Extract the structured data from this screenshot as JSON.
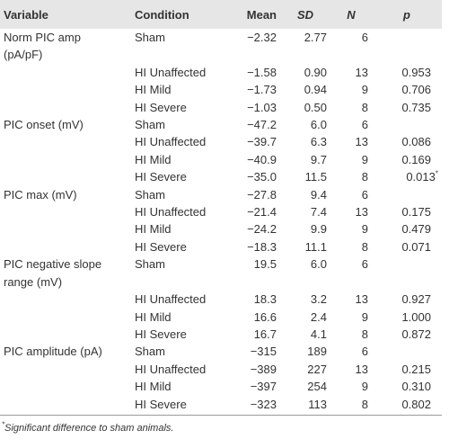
{
  "table": {
    "header": [
      "Variable",
      "Condition",
      "Mean",
      "SD",
      "N",
      "p"
    ],
    "rows": [
      {
        "variable": [
          "Norm PIC amp",
          "(pA/pF)"
        ],
        "condition": "Sham",
        "mean": "−2.32",
        "sd": "2.77",
        "n": "6",
        "p": null
      },
      {
        "variable": null,
        "condition": "HI Unaffected",
        "mean": "−1.58",
        "sd": "0.90",
        "n": "13",
        "p": "0.953"
      },
      {
        "variable": null,
        "condition": "HI Mild",
        "mean": "−1.73",
        "sd": "0.94",
        "n": "9",
        "p": "0.706"
      },
      {
        "variable": null,
        "condition": "HI Severe",
        "mean": "−1.03",
        "sd": "0.50",
        "n": "8",
        "p": "0.735"
      },
      {
        "variable": [
          "PIC onset (mV)"
        ],
        "condition": "Sham",
        "mean": "−47.2",
        "sd": "6.0",
        "n": "6",
        "p": null
      },
      {
        "variable": null,
        "condition": "HI Unaffected",
        "mean": "−39.7",
        "sd": "6.3",
        "n": "13",
        "p": "0.086"
      },
      {
        "variable": null,
        "condition": "HI Mild",
        "mean": "−40.9",
        "sd": "9.7",
        "n": "9",
        "p": "0.169"
      },
      {
        "variable": null,
        "condition": "HI Severe",
        "mean": "−35.0",
        "sd": "11.5",
        "n": "8",
        "p": "0.013",
        "p_mark": "*"
      },
      {
        "variable": [
          "PIC max (mV)"
        ],
        "condition": "Sham",
        "mean": "−27.8",
        "sd": "9.4",
        "n": "6",
        "p": null
      },
      {
        "variable": null,
        "condition": "HI Unaffected",
        "mean": "−21.4",
        "sd": "7.4",
        "n": "13",
        "p": "0.175"
      },
      {
        "variable": null,
        "condition": "HI Mild",
        "mean": "−24.2",
        "sd": "9.9",
        "n": "9",
        "p": "0.479"
      },
      {
        "variable": null,
        "condition": "HI Severe",
        "mean": "−18.3",
        "sd": "11.1",
        "n": "8",
        "p": "0.071"
      },
      {
        "variable": [
          "PIC negative slope",
          "range (mV)"
        ],
        "condition": "Sham",
        "mean": "19.5",
        "sd": "6.0",
        "n": "6",
        "p": null
      },
      {
        "variable": null,
        "condition": "HI Unaffected",
        "mean": "18.3",
        "sd": "3.2",
        "n": "13",
        "p": "0.927"
      },
      {
        "variable": null,
        "condition": "HI Mild",
        "mean": "16.6",
        "sd": "2.4",
        "n": "9",
        "p": "1.000"
      },
      {
        "variable": null,
        "condition": "HI Severe",
        "mean": "16.7",
        "sd": "4.1",
        "n": "8",
        "p": "0.872"
      },
      {
        "variable": [
          "PIC amplitude (pA)"
        ],
        "condition": "Sham",
        "mean": "−315",
        "sd": "189",
        "n": "6",
        "p": null
      },
      {
        "variable": null,
        "condition": "HI Unaffected",
        "mean": "−389",
        "sd": "227",
        "n": "13",
        "p": "0.215"
      },
      {
        "variable": null,
        "condition": "HI Mild",
        "mean": "−397",
        "sd": "254",
        "n": "9",
        "p": "0.310"
      },
      {
        "variable": null,
        "condition": "HI Severe",
        "mean": "−323",
        "sd": "113",
        "n": "8",
        "p": "0.802"
      }
    ],
    "footnote": {
      "mark": "*",
      "text": "Significant difference to sham animals."
    }
  }
}
